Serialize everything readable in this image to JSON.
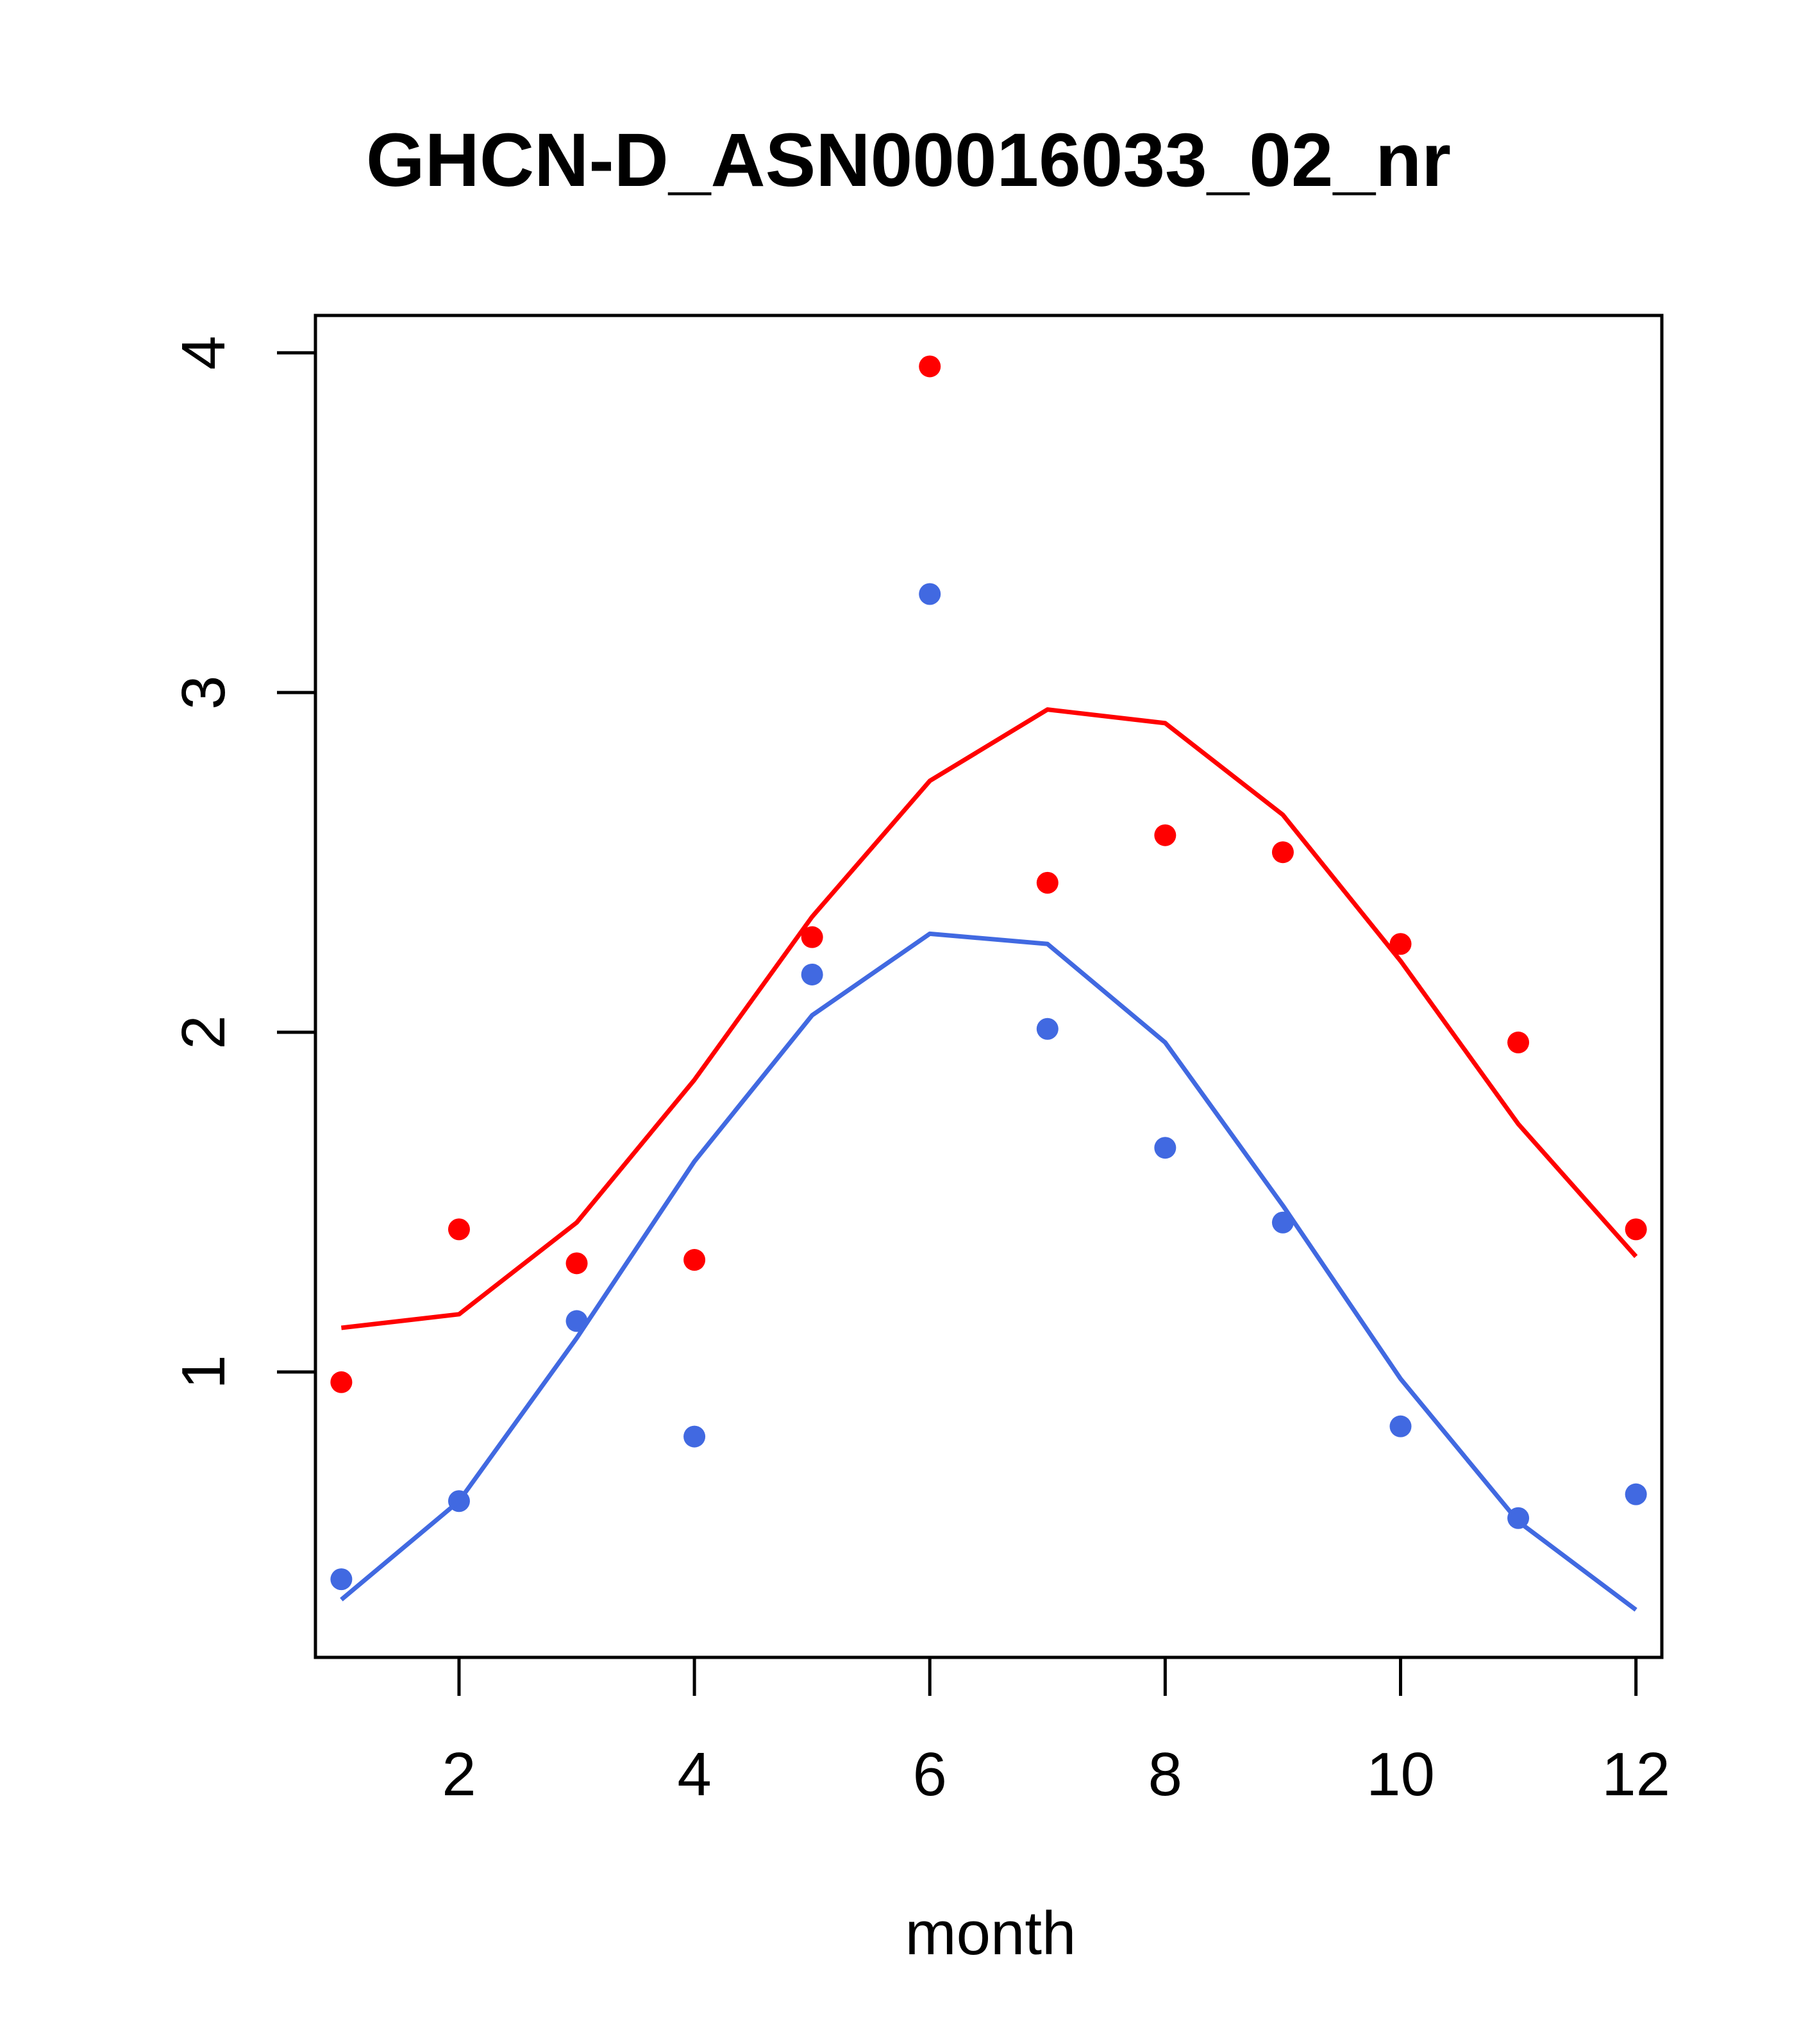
{
  "chart_data": {
    "type": "scatter",
    "title": "GHCN-D_ASN00016033_02_nr",
    "xlabel": "month",
    "ylabel": "",
    "xlim": [
      0.78,
      12.22
    ],
    "ylim": [
      0.16,
      4.11
    ],
    "x_ticks": [
      2,
      4,
      6,
      8,
      10,
      12
    ],
    "y_ticks": [
      1,
      2,
      3,
      4
    ],
    "grid": false,
    "legend": "none",
    "series": [
      {
        "name": "red points",
        "kind": "points",
        "color": "#ff0000",
        "x": [
          1,
          2,
          3,
          4,
          5,
          6,
          7,
          8,
          9,
          10,
          11,
          12
        ],
        "y": [
          0.97,
          1.42,
          1.32,
          1.33,
          2.28,
          3.96,
          2.44,
          2.58,
          2.53,
          2.26,
          1.97,
          1.42
        ]
      },
      {
        "name": "red line",
        "kind": "line",
        "color": "#ff0000",
        "x": [
          1,
          2,
          3,
          4,
          5,
          6,
          7,
          8,
          9,
          10,
          11,
          12
        ],
        "y": [
          1.13,
          1.17,
          1.44,
          1.86,
          2.34,
          2.74,
          2.95,
          2.91,
          2.64,
          2.21,
          1.73,
          1.34
        ]
      },
      {
        "name": "blue points",
        "kind": "points",
        "color": "#4169e1",
        "x": [
          1,
          2,
          3,
          4,
          5,
          6,
          7,
          8,
          9,
          10,
          11,
          12
        ],
        "y": [
          0.39,
          0.62,
          1.15,
          0.81,
          2.17,
          3.29,
          2.01,
          1.66,
          1.44,
          0.84,
          0.57,
          0.64
        ]
      },
      {
        "name": "blue line",
        "kind": "line",
        "color": "#4169e1",
        "x": [
          1,
          2,
          3,
          4,
          5,
          6,
          7,
          8,
          9,
          10,
          11,
          12
        ],
        "y": [
          0.33,
          0.62,
          1.1,
          1.62,
          2.05,
          2.29,
          2.26,
          1.97,
          1.49,
          0.98,
          0.56,
          0.3
        ]
      }
    ]
  }
}
